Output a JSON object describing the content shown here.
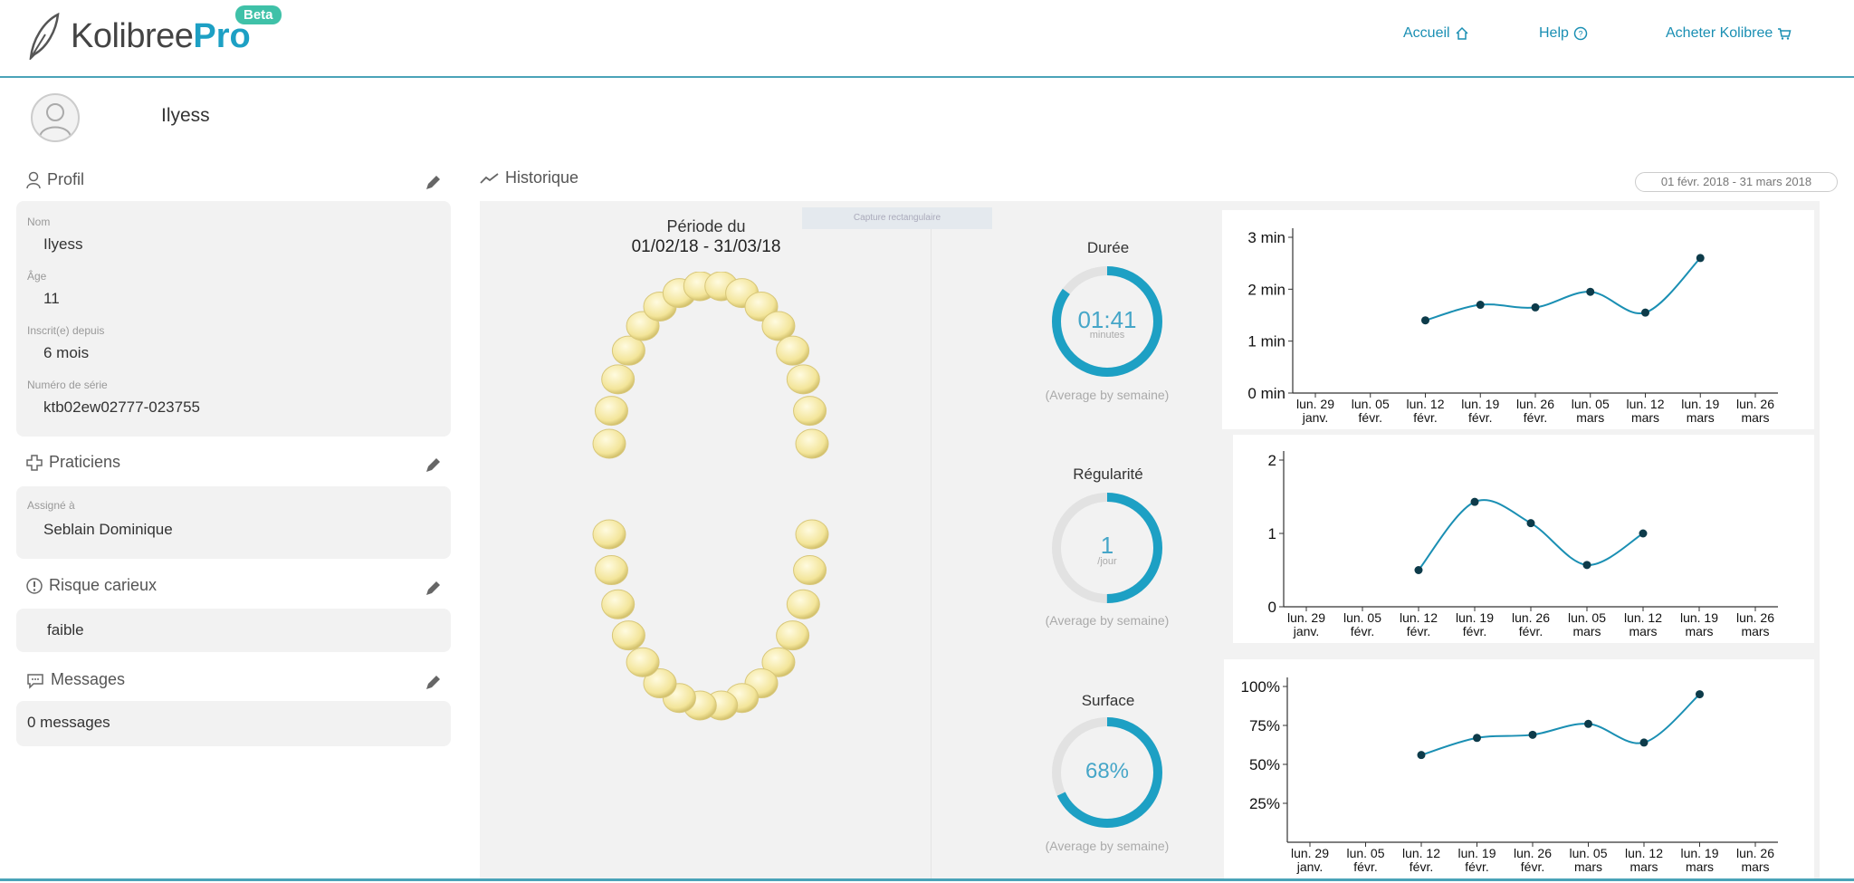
{
  "app": {
    "brand": "Kolibree",
    "brand_pro": "Pro",
    "beta": "Beta"
  },
  "nav": {
    "home": "Accueil",
    "help": "Help",
    "buy": "Acheter Kolibree"
  },
  "user": {
    "name": "Ilyess"
  },
  "sidebar": {
    "profile": {
      "title": "Profil",
      "name_label": "Nom",
      "name": "Ilyess",
      "age_label": "Âge",
      "age": "11",
      "since_label": "Inscrit(e) depuis",
      "since": "6 mois",
      "serial_label": "Numéro de série",
      "serial": "ktb02ew02777-023755"
    },
    "practitioners": {
      "title": "Praticiens",
      "assigned_label": "Assigné à",
      "assigned": "Seblain Dominique"
    },
    "risk": {
      "title": "Risque carieux",
      "value": "faible"
    },
    "messages": {
      "title": "Messages",
      "value": "0 messages"
    }
  },
  "history": {
    "title": "Historique",
    "date_range": "01 févr. 2018 - 31 mars 2018",
    "capture_label": "Capture rectangulaire",
    "period_label": "Période du",
    "period_range": "01/02/18 - 31/03/18"
  },
  "metrics": {
    "duration": {
      "title": "Durée",
      "value": "01:41",
      "unit": "minutes",
      "sub": "(Average by semaine)",
      "fraction": 0.85
    },
    "regularity": {
      "title": "Régularité",
      "value": "1",
      "unit": "/jour",
      "sub": "(Average by semaine)",
      "fraction": 0.5
    },
    "surface": {
      "title": "Surface",
      "value": "68%",
      "unit": "",
      "sub": "(Average by semaine)",
      "fraction": 0.68
    }
  },
  "colors": {
    "accent": "#1da0c4",
    "line": "#1a8fb3",
    "beta": "#3fc1a8"
  },
  "chart_data": [
    {
      "type": "line",
      "categories": [
        "lun. 29 janv.",
        "lun. 05 févr.",
        "lun. 12 févr.",
        "lun. 19 févr.",
        "lun. 26 févr.",
        "lun. 05 mars",
        "lun. 12 mars",
        "lun. 19 mars",
        "lun. 26 mars"
      ],
      "tick_top": [
        "lun. 29",
        "lun. 05",
        "lun. 12",
        "lun. 19",
        "lun. 26",
        "lun. 05",
        "lun. 12",
        "lun. 19",
        "lun. 26"
      ],
      "tick_bottom": [
        "janv.",
        "févr.",
        "févr.",
        "févr.",
        "févr.",
        "mars",
        "mars",
        "mars",
        "mars"
      ],
      "series": [
        {
          "values": [
            null,
            null,
            1.4,
            1.7,
            1.65,
            1.95,
            1.55,
            2.6,
            null
          ]
        }
      ],
      "yticks": [
        "0 min",
        "1 min",
        "2 min",
        "3 min"
      ],
      "ylim": [
        0,
        3
      ]
    },
    {
      "type": "line",
      "categories": [
        "lun. 29 janv.",
        "lun. 05 févr.",
        "lun. 12 févr.",
        "lun. 19 févr.",
        "lun. 26 févr.",
        "lun. 05 mars",
        "lun. 12 mars",
        "lun. 19 mars",
        "lun. 26 mars"
      ],
      "tick_top": [
        "lun. 29",
        "lun. 05",
        "lun. 12",
        "lun. 19",
        "lun. 26",
        "lun. 05",
        "lun. 12",
        "lun. 19",
        "lun. 26"
      ],
      "tick_bottom": [
        "janv.",
        "févr.",
        "févr.",
        "févr.",
        "févr.",
        "mars",
        "mars",
        "mars",
        "mars"
      ],
      "series": [
        {
          "values": [
            null,
            null,
            0.5,
            1.43,
            1.14,
            0.57,
            1.0,
            null,
            null
          ]
        }
      ],
      "yticks": [
        "0",
        "1",
        "2"
      ],
      "ylim": [
        0,
        2
      ]
    },
    {
      "type": "line",
      "categories": [
        "lun. 29 janv.",
        "lun. 05 févr.",
        "lun. 12 févr.",
        "lun. 19 févr.",
        "lun. 26 févr.",
        "lun. 05 mars",
        "lun. 12 mars",
        "lun. 19 mars",
        "lun. 26 mars"
      ],
      "tick_top": [
        "lun. 29",
        "lun. 05",
        "lun. 12",
        "lun. 19",
        "lun. 26",
        "lun. 05",
        "lun. 12",
        "lun. 19",
        "lun. 26"
      ],
      "tick_bottom": [
        "janv.",
        "févr.",
        "févr.",
        "févr.",
        "févr.",
        "mars",
        "mars",
        "mars",
        "mars"
      ],
      "series": [
        {
          "values": [
            null,
            null,
            56,
            67,
            69,
            76,
            64,
            95,
            null
          ]
        }
      ],
      "yticks": [
        "25%",
        "50%",
        "75%",
        "100%"
      ],
      "ylim": [
        0,
        100
      ]
    }
  ]
}
